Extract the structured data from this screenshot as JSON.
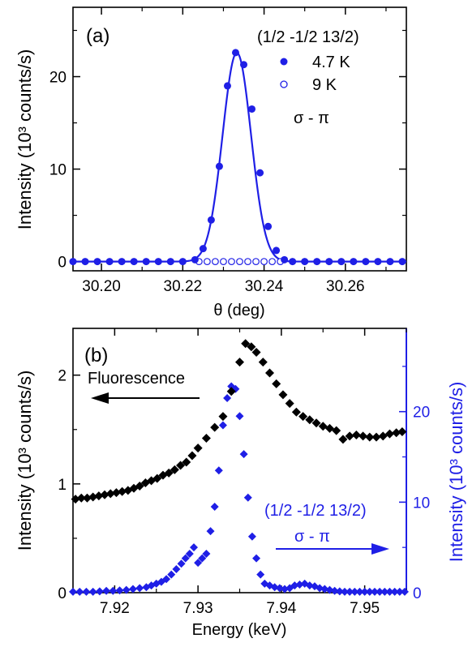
{
  "chart_data": [
    {
      "type": "scatter",
      "panel_label": "(a)",
      "xlabel": "θ (deg)",
      "ylabel": "Intensity (10³ counts/s)",
      "xlim": [
        30.193,
        30.275
      ],
      "ylim": [
        -1,
        27.5
      ],
      "xticks": [
        30.2,
        30.22,
        30.24,
        30.26
      ],
      "xtick_labels": [
        "30.20",
        "30.22",
        "30.24",
        "30.26"
      ],
      "yticks": [
        0,
        10,
        20
      ],
      "ytick_labels": [
        "0",
        "10",
        "20"
      ],
      "legend": {
        "title": "(1/2 -1/2 13/2)",
        "note": "σ - π",
        "placement": "top-right"
      },
      "series": [
        {
          "name": "4.7 K",
          "marker": "filled-circle",
          "color": "#1f1fe6",
          "line": "gaussian-fit",
          "fit": {
            "amplitude": 22.6,
            "center": 30.2333,
            "sigma": 0.0035
          },
          "x": [
            30.193,
            30.196,
            30.199,
            30.202,
            30.205,
            30.208,
            30.211,
            30.214,
            30.217,
            30.22,
            30.223,
            30.225,
            30.227,
            30.229,
            30.231,
            30.233,
            30.235,
            30.237,
            30.239,
            30.241,
            30.243,
            30.245,
            30.247,
            30.25,
            30.253,
            30.256,
            30.259,
            30.262,
            30.265,
            30.268,
            30.271,
            30.274
          ],
          "y": [
            0,
            0,
            0,
            0,
            0,
            0,
            0,
            0,
            0,
            0,
            0.2,
            1.4,
            4.5,
            10.3,
            19,
            22.6,
            21.3,
            16.5,
            9.6,
            3.8,
            1.2,
            0.2,
            0,
            0,
            0,
            0,
            0,
            0,
            0,
            0,
            0,
            0
          ]
        },
        {
          "name": "9 K",
          "marker": "open-circle",
          "color": "#1f1fe6",
          "x": [
            30.224,
            30.226,
            30.228,
            30.23,
            30.232,
            30.234,
            30.236,
            30.238,
            30.24,
            30.242,
            30.244
          ],
          "y": [
            0,
            0,
            0,
            0,
            0,
            0,
            0,
            0,
            0,
            0,
            0
          ]
        }
      ]
    },
    {
      "type": "scatter",
      "panel_label": "(b)",
      "xlabel": "Energy (keV)",
      "ylabel": "Intensity (10³ counts/s)",
      "ylabel_right": "Intensity (10³ counts/s)",
      "xlim": [
        7.915,
        7.955
      ],
      "ylim": [
        0,
        2.43
      ],
      "ylim_right": [
        0,
        29.2
      ],
      "xticks": [
        7.92,
        7.93,
        7.94,
        7.95
      ],
      "xtick_labels": [
        "7.92",
        "7.93",
        "7.94",
        "7.95"
      ],
      "yticks": [
        0,
        1,
        2
      ],
      "ytick_labels": [
        "0",
        "1",
        "2"
      ],
      "yticks_right": [
        0,
        10,
        20
      ],
      "ytick_labels_right": [
        "0",
        "10",
        "20"
      ],
      "annotations": {
        "fluorescence": "Fluorescence",
        "reflection": "(1/2 -1/2 13/2)",
        "polarization": "σ - π"
      },
      "series": [
        {
          "name": "Fluorescence",
          "axis": "left",
          "color": "#000000",
          "marker": "filled-diamond",
          "x": [
            7.9153,
            7.916,
            7.9167,
            7.9174,
            7.9181,
            7.9188,
            7.9195,
            7.9202,
            7.9209,
            7.9216,
            7.9223,
            7.923,
            7.9237,
            7.9244,
            7.9251,
            7.9258,
            7.9265,
            7.9272,
            7.9279,
            7.9286,
            7.9293,
            7.93,
            7.931,
            7.932,
            7.933,
            7.934,
            7.935,
            7.9357,
            7.9364,
            7.937,
            7.9378,
            7.9386,
            7.9394,
            7.9402,
            7.941,
            7.9418,
            7.9426,
            7.9434,
            7.9442,
            7.945,
            7.9458,
            7.9466,
            7.9474,
            7.9482,
            7.949,
            7.9498,
            7.9506,
            7.9514,
            7.9522,
            7.953,
            7.9538,
            7.9545
          ],
          "y": [
            0.86,
            0.87,
            0.87,
            0.88,
            0.89,
            0.9,
            0.91,
            0.92,
            0.93,
            0.94,
            0.96,
            0.98,
            1.01,
            1.03,
            1.05,
            1.08,
            1.1,
            1.13,
            1.17,
            1.2,
            1.26,
            1.33,
            1.42,
            1.52,
            1.62,
            1.85,
            2.12,
            2.29,
            2.26,
            2.21,
            2.12,
            2.02,
            1.92,
            1.82,
            1.74,
            1.66,
            1.62,
            1.59,
            1.56,
            1.53,
            1.51,
            1.49,
            1.41,
            1.44,
            1.45,
            1.44,
            1.43,
            1.43,
            1.44,
            1.46,
            1.47,
            1.48
          ]
        },
        {
          "name": "(1/2 -1/2 13/2)",
          "axis": "right",
          "color": "#1f1fe6",
          "marker": "filled-diamond",
          "x": [
            7.915,
            7.9158,
            7.9166,
            7.9174,
            7.9182,
            7.919,
            7.9198,
            7.9206,
            7.9214,
            7.9222,
            7.923,
            7.9238,
            7.9244,
            7.925,
            7.9256,
            7.9262,
            7.9268,
            7.9274,
            7.928,
            7.9285,
            7.929,
            7.9295,
            7.93,
            7.9305,
            7.931,
            7.9315,
            7.932,
            7.9325,
            7.933,
            7.9335,
            7.934,
            7.9345,
            7.935,
            7.9355,
            7.936,
            7.9365,
            7.937,
            7.9375,
            7.938,
            7.9386,
            7.9392,
            7.9398,
            7.9404,
            7.941,
            7.9416,
            7.9422,
            7.9428,
            7.9434,
            7.944,
            7.9446,
            7.9452,
            7.9458,
            7.9464,
            7.947,
            7.9476,
            7.9482,
            7.9488,
            7.9494,
            7.95,
            7.9506,
            7.9512,
            7.9518,
            7.9524,
            7.953,
            7.9536,
            7.9542,
            7.9548
          ],
          "y": [
            0.1,
            0.1,
            0.1,
            0.1,
            0.15,
            0.2,
            0.2,
            0.25,
            0.3,
            0.4,
            0.5,
            0.6,
            0.8,
            1.0,
            1.2,
            1.5,
            2.0,
            2.6,
            3.2,
            3.8,
            4.3,
            5.0,
            3.3,
            3.8,
            4.3,
            6.8,
            9.5,
            13.5,
            18.5,
            21.5,
            22.8,
            22.5,
            19.5,
            15.3,
            10.5,
            6.2,
            3.8,
            2.0,
            1.0,
            0.8,
            0.6,
            0.5,
            0.4,
            0.5,
            0.8,
            0.9,
            1.0,
            0.8,
            0.7,
            0.5,
            0.4,
            0.3,
            0.2,
            0.15,
            0.1,
            0.1,
            0.1,
            0.1,
            0.1,
            0.1,
            0.1,
            0.1,
            0.1,
            0.1,
            0.1,
            0.1,
            0.1
          ]
        }
      ]
    }
  ]
}
